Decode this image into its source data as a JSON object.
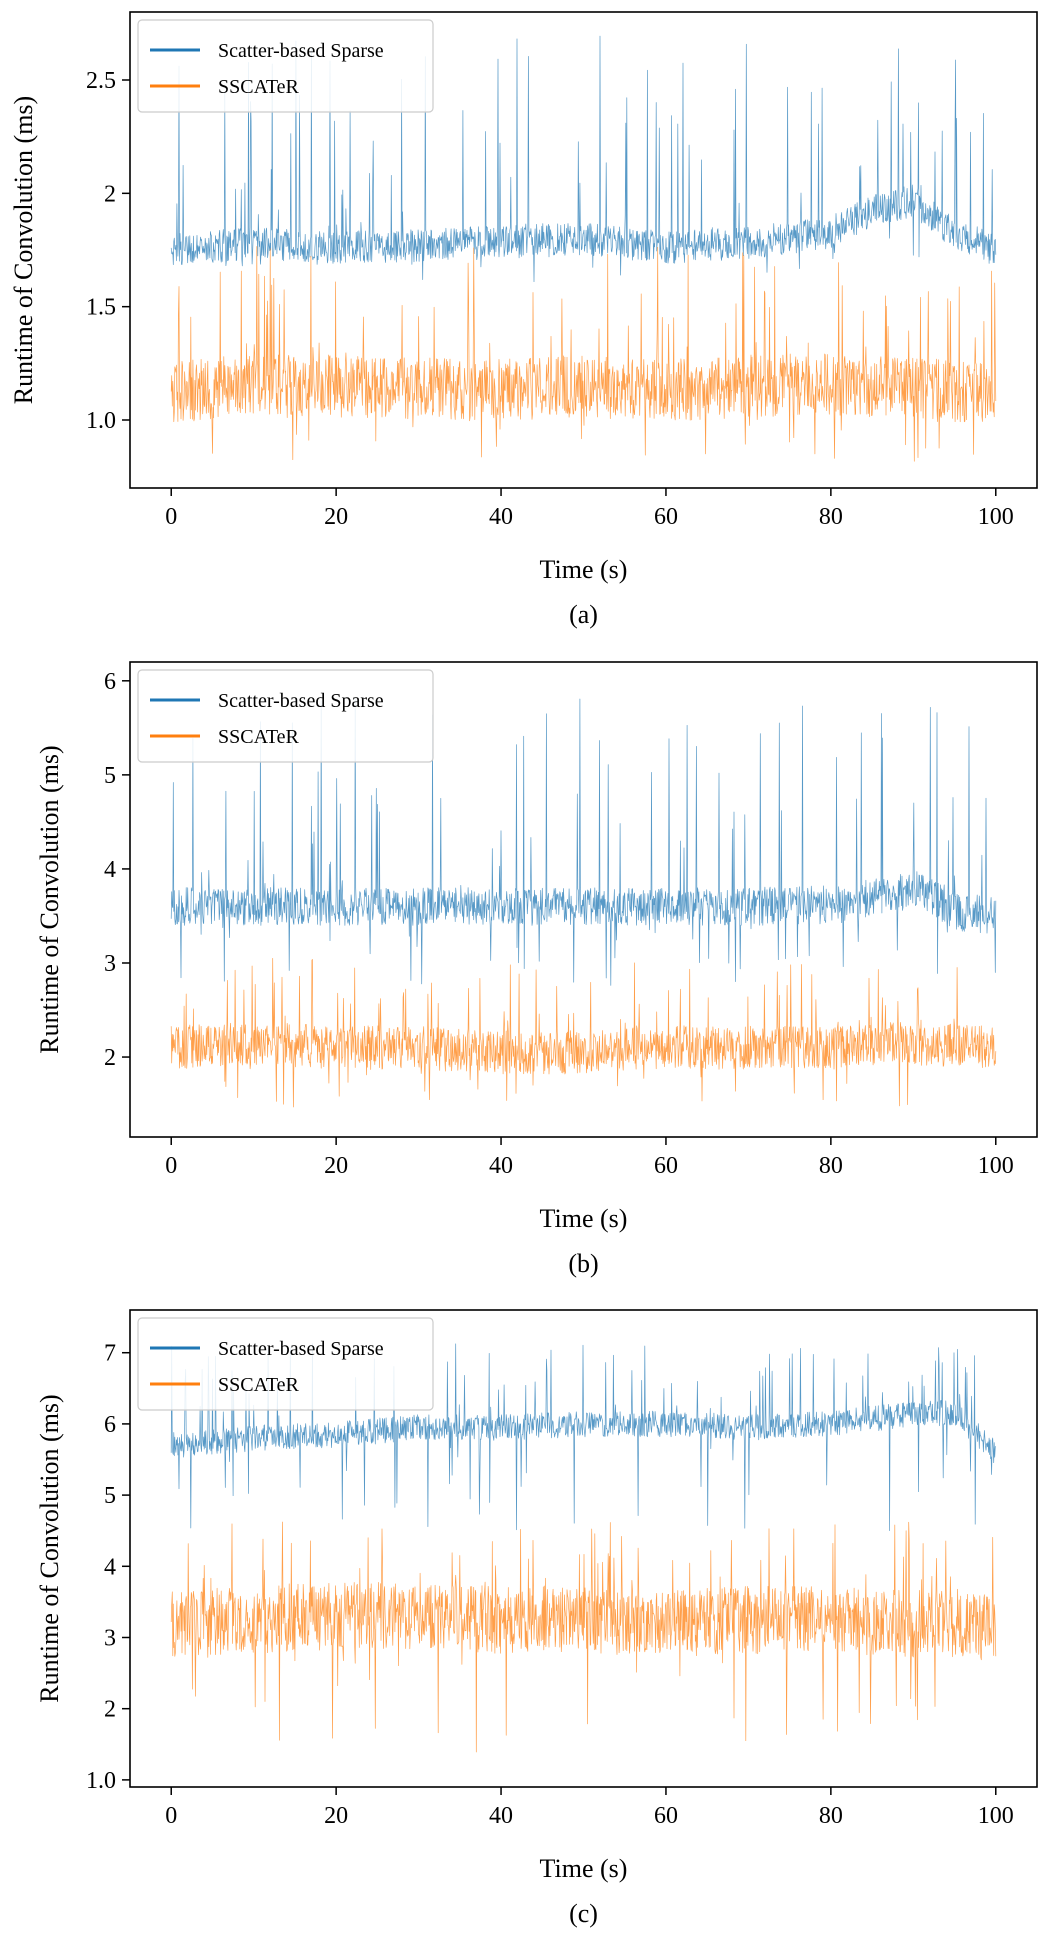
{
  "figure": {
    "panels": [
      {
        "caption": "(a)",
        "legend": [
          "Scatter-based Sparse",
          "SSCATeR"
        ],
        "xlabel": "Time (s)",
        "ylabel": "Runtime of Convolution (ms)"
      },
      {
        "caption": "(b)",
        "legend": [
          "Scatter-based Sparse",
          "SSCATeR"
        ],
        "xlabel": "Time (s)",
        "ylabel": "Runtime of Convolution (ms)"
      },
      {
        "caption": "(c)",
        "legend": [
          "Scatter-based Sparse",
          "SSCATeR"
        ],
        "xlabel": "Time (s)",
        "ylabel": "Runtime of Convolution (ms)"
      }
    ]
  },
  "chart_data": [
    {
      "type": "line",
      "title": "",
      "caption": "(a)",
      "xlabel": "Time (s)",
      "ylabel": "Runtime of Convolution (ms)",
      "xlim": [
        -5,
        105
      ],
      "ylim": [
        0.7,
        2.8
      ],
      "xticks": [
        0,
        20,
        40,
        60,
        80,
        100
      ],
      "yticks": [
        1.0,
        1.5,
        2.0,
        2.5
      ],
      "grid": false,
      "legend_position": "top-left",
      "series": [
        {
          "name": "Scatter-based Sparse",
          "color": "#1f77b4",
          "x": [
            0,
            10,
            20,
            30,
            40,
            50,
            60,
            70,
            80,
            85,
            90,
            95,
            100
          ],
          "y": [
            1.75,
            1.78,
            1.76,
            1.77,
            1.79,
            1.8,
            1.76,
            1.78,
            1.83,
            1.92,
            1.97,
            1.82,
            1.75
          ],
          "range": [
            1.6,
            2.75
          ]
        },
        {
          "name": "SSCATeR",
          "color": "#ff7f0e",
          "x": [
            0,
            10,
            20,
            30,
            40,
            50,
            60,
            70,
            80,
            90,
            100
          ],
          "y": [
            1.12,
            1.16,
            1.15,
            1.14,
            1.13,
            1.15,
            1.13,
            1.15,
            1.16,
            1.14,
            1.12
          ],
          "range": [
            0.8,
            1.8
          ]
        }
      ]
    },
    {
      "type": "line",
      "title": "",
      "caption": "(b)",
      "xlabel": "Time (s)",
      "ylabel": "Runtime of Convolution (ms)",
      "xlim": [
        -5,
        105
      ],
      "ylim": [
        1.15,
        6.2
      ],
      "xticks": [
        0,
        20,
        40,
        60,
        80,
        100
      ],
      "yticks": [
        2,
        3,
        4,
        5,
        6
      ],
      "grid": false,
      "legend_position": "top-left",
      "series": [
        {
          "name": "Scatter-based Sparse",
          "color": "#1f77b4",
          "x": [
            0,
            10,
            20,
            30,
            40,
            50,
            60,
            70,
            80,
            88,
            91,
            95,
            100
          ],
          "y": [
            3.6,
            3.6,
            3.6,
            3.6,
            3.6,
            3.6,
            3.6,
            3.6,
            3.62,
            3.75,
            3.8,
            3.55,
            3.5
          ],
          "range": [
            2.7,
            5.95
          ]
        },
        {
          "name": "SSCATeR",
          "color": "#ff7f0e",
          "x": [
            0,
            10,
            20,
            30,
            40,
            50,
            60,
            70,
            80,
            90,
            100
          ],
          "y": [
            2.1,
            2.15,
            2.1,
            2.1,
            2.05,
            2.05,
            2.1,
            2.1,
            2.1,
            2.15,
            2.1
          ],
          "range": [
            1.4,
            3.1
          ]
        }
      ]
    },
    {
      "type": "line",
      "title": "",
      "caption": "(c)",
      "xlabel": "Time (s)",
      "ylabel": "Runtime of Convolution (ms)",
      "xlim": [
        -5,
        105
      ],
      "ylim": [
        0.9,
        7.6
      ],
      "xticks": [
        0,
        20,
        40,
        60,
        80,
        100
      ],
      "yticks": [
        1,
        2,
        3,
        4,
        5,
        6,
        7
      ],
      "grid": false,
      "legend_position": "top-left",
      "series": [
        {
          "name": "Scatter-based Sparse",
          "color": "#1f77b4",
          "x": [
            0,
            10,
            20,
            30,
            40,
            50,
            60,
            70,
            80,
            90,
            95,
            100
          ],
          "y": [
            5.7,
            5.8,
            5.85,
            5.95,
            5.95,
            6.0,
            6.0,
            5.95,
            6.0,
            6.15,
            6.15,
            5.6
          ],
          "range": [
            4.3,
            7.2
          ]
        },
        {
          "name": "SSCATeR",
          "color": "#ff7f0e",
          "x": [
            0,
            10,
            20,
            30,
            40,
            50,
            60,
            70,
            80,
            90,
            100
          ],
          "y": [
            3.2,
            3.25,
            3.3,
            3.3,
            3.25,
            3.25,
            3.2,
            3.25,
            3.25,
            3.2,
            3.15
          ],
          "range": [
            1.25,
            4.7
          ]
        }
      ]
    }
  ]
}
